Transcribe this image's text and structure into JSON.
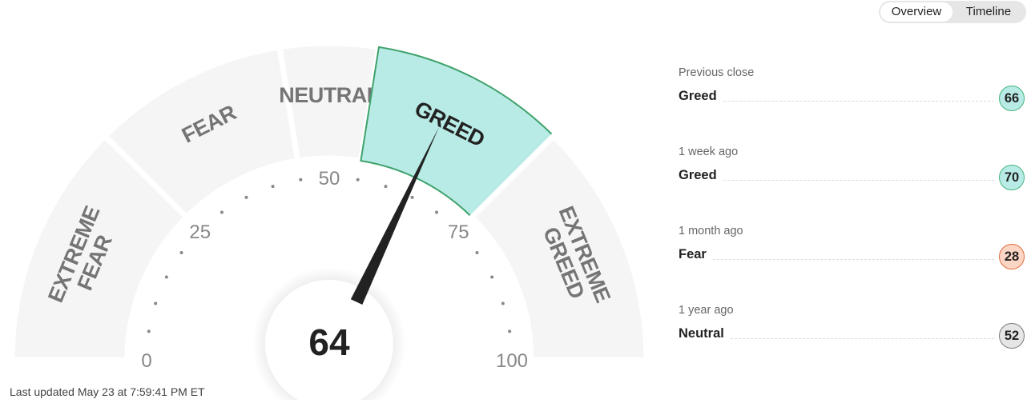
{
  "toggle": {
    "tabs": [
      {
        "label": "Overview",
        "active": true
      },
      {
        "label": "Timeline",
        "active": false
      }
    ]
  },
  "gauge": {
    "value": 64,
    "value_label": "64",
    "range": [
      0,
      100
    ],
    "tick_labels": [
      "0",
      "25",
      "50",
      "75",
      "100"
    ],
    "segments": [
      {
        "label": "EXTREME FEAR",
        "lines": [
          "EXTREME",
          "FEAR"
        ],
        "from": 0,
        "to": 25
      },
      {
        "label": "FEAR",
        "lines": [
          "FEAR"
        ],
        "from": 25,
        "to": 45
      },
      {
        "label": "NEUTRAL",
        "lines": [
          "NEUTRAL"
        ],
        "from": 45,
        "to": 55
      },
      {
        "label": "GREED",
        "lines": [
          "GREED"
        ],
        "from": 55,
        "to": 75,
        "active": true
      },
      {
        "label": "EXTREME GREED",
        "lines": [
          "EXTREME",
          "GREED"
        ],
        "from": 75,
        "to": 100
      }
    ],
    "colors": {
      "segment": "#f5f5f5",
      "active_fill": "#b8ebe5",
      "active_stroke": "#3fa26c",
      "label": "#757575",
      "active_label": "#222222",
      "needle": "#222222",
      "tick": "#888888"
    }
  },
  "last_updated": "Last updated May 23 at 7:59:41 PM ET",
  "history": [
    {
      "when": "Previous close",
      "rating": "Greed",
      "value": "66",
      "fill": "#b8ebe5",
      "border": "#45b47c"
    },
    {
      "when": "1 week ago",
      "rating": "Greed",
      "value": "70",
      "fill": "#b8ebe5",
      "border": "#45b47c"
    },
    {
      "when": "1 month ago",
      "rating": "Fear",
      "value": "28",
      "fill": "#fcd6c4",
      "border": "#e06a3c"
    },
    {
      "when": "1 year ago",
      "rating": "Neutral",
      "value": "52",
      "fill": "#e6e6e6",
      "border": "#7a7a7a"
    }
  ]
}
